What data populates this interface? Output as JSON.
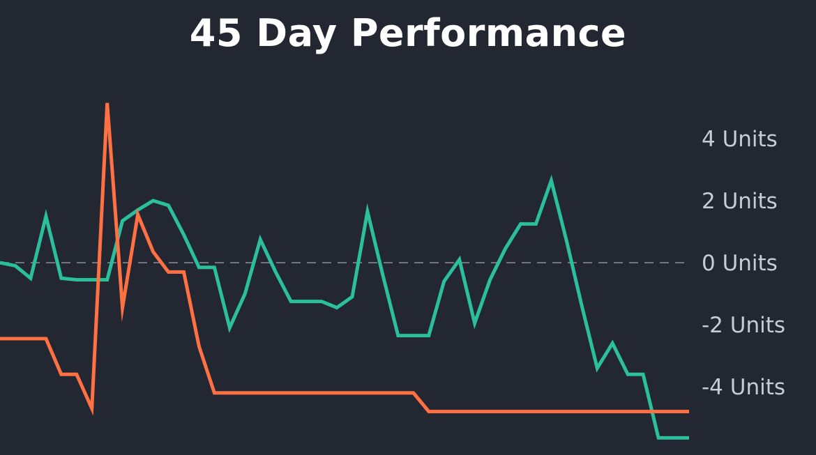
{
  "chart_data": {
    "type": "line",
    "title": "45 Day Performance",
    "xlabel": "",
    "ylabel": "",
    "ylim": [
      -5.6,
      5.4
    ],
    "y_ticks": [
      {
        "value": 4,
        "label": "4 Units"
      },
      {
        "value": 2,
        "label": "2 Units"
      },
      {
        "value": 0,
        "label": "0 Units"
      },
      {
        "value": -2,
        "label": "-2 Units"
      },
      {
        "value": -4,
        "label": "-4 Units"
      }
    ],
    "y_axis_position": "right",
    "grid": false,
    "reference_line": {
      "value": 0,
      "style": "dashed"
    },
    "x": [
      1,
      2,
      3,
      4,
      5,
      6,
      7,
      8,
      9,
      10,
      11,
      12,
      13,
      14,
      15,
      16,
      17,
      18,
      19,
      20,
      21,
      22,
      23,
      24,
      25,
      26,
      27,
      28,
      29,
      30,
      31,
      32,
      33,
      34,
      35,
      36,
      37,
      38,
      39,
      40,
      41,
      42,
      43,
      44,
      45,
      46
    ],
    "series": [
      {
        "color": "#2bbf9b",
        "values": [
          0,
          -0.1,
          -0.5,
          1.5,
          -0.5,
          -0.55,
          -0.55,
          -0.55,
          1.35,
          1.7,
          2.0,
          1.85,
          0.9,
          -0.15,
          -0.15,
          -2.1,
          -1.0,
          0.75,
          -0.3,
          -1.25,
          -1.25,
          -1.25,
          -1.45,
          -1.1,
          1.65,
          -0.4,
          -2.35,
          -2.35,
          -2.35,
          -0.6,
          0.1,
          -1.95,
          -0.55,
          0.45,
          1.25,
          1.25,
          2.65,
          0.7,
          -1.4,
          -3.4,
          -2.6,
          -3.6,
          -3.6,
          -5.65,
          -5.65,
          -5.65
        ]
      },
      {
        "color": "#ff7143",
        "values": [
          -2.45,
          -2.45,
          -2.45,
          -2.45,
          -3.6,
          -3.6,
          -4.7,
          5.15,
          -1.45,
          1.55,
          0.35,
          -0.3,
          -0.3,
          -2.7,
          -4.2,
          -4.2,
          -4.2,
          -4.2,
          -4.2,
          -4.2,
          -4.2,
          -4.2,
          -4.2,
          -4.2,
          -4.2,
          -4.2,
          -4.2,
          -4.2,
          -4.8,
          -4.8,
          -4.8,
          -4.8,
          -4.8,
          -4.8,
          -4.8,
          -4.8,
          -4.8,
          -4.8,
          -4.8,
          -4.8,
          -4.8,
          -4.8,
          -4.8,
          -4.8,
          -4.8,
          -4.8
        ]
      }
    ]
  }
}
